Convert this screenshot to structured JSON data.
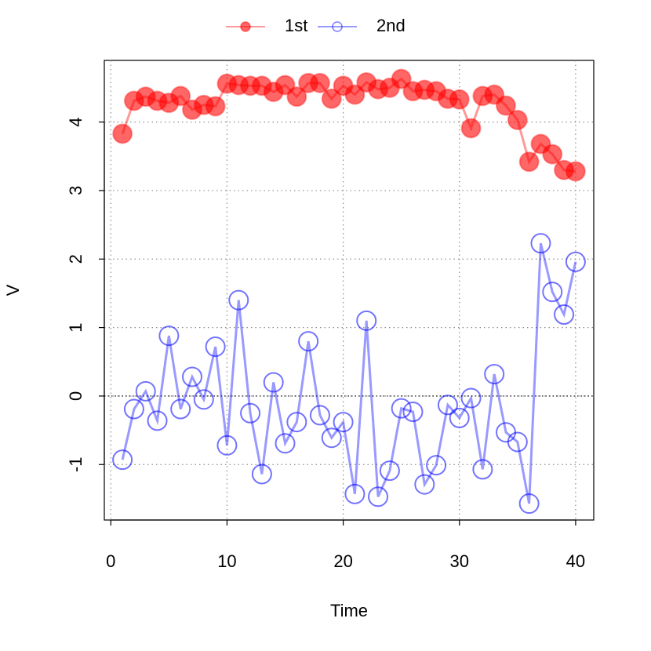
{
  "chart_data": {
    "type": "line",
    "x_label": "Time",
    "y_label": "V",
    "x": [
      1,
      2,
      3,
      4,
      5,
      6,
      7,
      8,
      9,
      10,
      11,
      12,
      13,
      14,
      15,
      16,
      17,
      18,
      19,
      20,
      21,
      22,
      23,
      24,
      25,
      26,
      27,
      28,
      29,
      30,
      31,
      32,
      33,
      34,
      35,
      36,
      37,
      38,
      39,
      40
    ],
    "series": [
      {
        "name": "1st",
        "color": "#ff0000",
        "filled": true,
        "values": [
          3.83,
          4.31,
          4.37,
          4.31,
          4.28,
          4.38,
          4.18,
          4.25,
          4.23,
          4.56,
          4.54,
          4.53,
          4.53,
          4.44,
          4.54,
          4.37,
          4.57,
          4.57,
          4.34,
          4.53,
          4.4,
          4.58,
          4.48,
          4.5,
          4.63,
          4.45,
          4.47,
          4.45,
          4.34,
          4.33,
          3.91,
          4.38,
          4.4,
          4.24,
          4.03,
          3.42,
          3.68,
          3.53,
          3.3,
          3.28
        ]
      },
      {
        "name": "2nd",
        "color": "#0000ff",
        "filled": false,
        "values": [
          -0.93,
          -0.19,
          0.07,
          -0.36,
          0.88,
          -0.19,
          0.28,
          -0.05,
          0.72,
          -0.72,
          1.4,
          -0.25,
          -1.14,
          0.2,
          -0.69,
          -0.38,
          0.8,
          -0.28,
          -0.61,
          -0.38,
          -1.43,
          1.1,
          -1.47,
          -1.09,
          -0.18,
          -0.23,
          -1.29,
          -1.01,
          -0.13,
          -0.32,
          -0.03,
          -1.07,
          0.32,
          -0.53,
          -0.67,
          -1.57,
          2.23,
          1.52,
          1.19,
          1.96
        ]
      }
    ],
    "xlim": [
      -0.56,
      41.56
    ],
    "ylim": [
      -1.81,
      4.9
    ],
    "xticks": [
      0,
      10,
      20,
      30,
      40
    ],
    "yticks": [
      -1,
      0,
      1,
      2,
      3,
      4
    ],
    "grid": true,
    "reference_line": 0,
    "legend": "top"
  }
}
